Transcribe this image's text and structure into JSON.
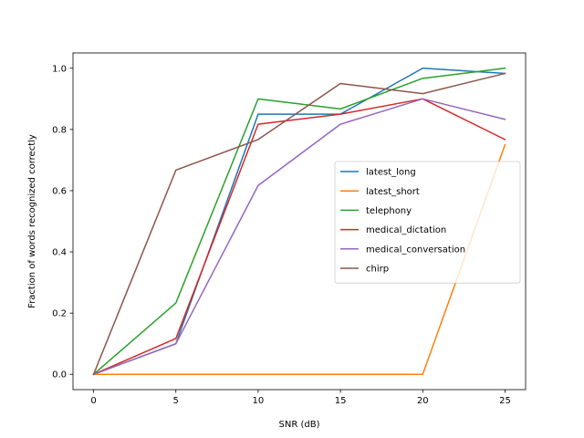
{
  "chart_data": {
    "type": "line",
    "title": "",
    "xlabel": "SNR (dB)",
    "ylabel": "Fraction of words recognized correctly",
    "x": [
      0,
      5,
      10,
      15,
      20,
      25
    ],
    "xticks": [
      "0",
      "5",
      "10",
      "15",
      "20",
      "25"
    ],
    "yticks": [
      "0.0",
      "0.2",
      "0.4",
      "0.6",
      "0.8",
      "1.0"
    ],
    "xlim": [
      -1.25,
      26.25
    ],
    "ylim": [
      -0.05,
      1.05
    ],
    "grid": false,
    "legend_position": "center-right",
    "series": [
      {
        "name": "latest_long",
        "color": "#1f77b4",
        "values": [
          0.0,
          0.1,
          0.85,
          0.85,
          1.0,
          0.983
        ]
      },
      {
        "name": "latest_short",
        "color": "#ff7f0e",
        "values": [
          0.0,
          0.0,
          0.0,
          0.0,
          0.0,
          0.75
        ]
      },
      {
        "name": "telephony",
        "color": "#2ca02c",
        "values": [
          0.0,
          0.233,
          0.9,
          0.867,
          0.967,
          1.0
        ]
      },
      {
        "name": "medical_dictation",
        "color": "#d62728",
        "values": [
          0.0,
          0.117,
          0.817,
          0.85,
          0.9,
          0.767
        ]
      },
      {
        "name": "medical_conversation",
        "color": "#9467bd",
        "values": [
          0.0,
          0.1,
          0.617,
          0.817,
          0.9,
          0.833
        ]
      },
      {
        "name": "chirp",
        "color": "#8c564b",
        "values": [
          0.0,
          0.667,
          0.767,
          0.95,
          0.917,
          0.983
        ]
      }
    ]
  }
}
